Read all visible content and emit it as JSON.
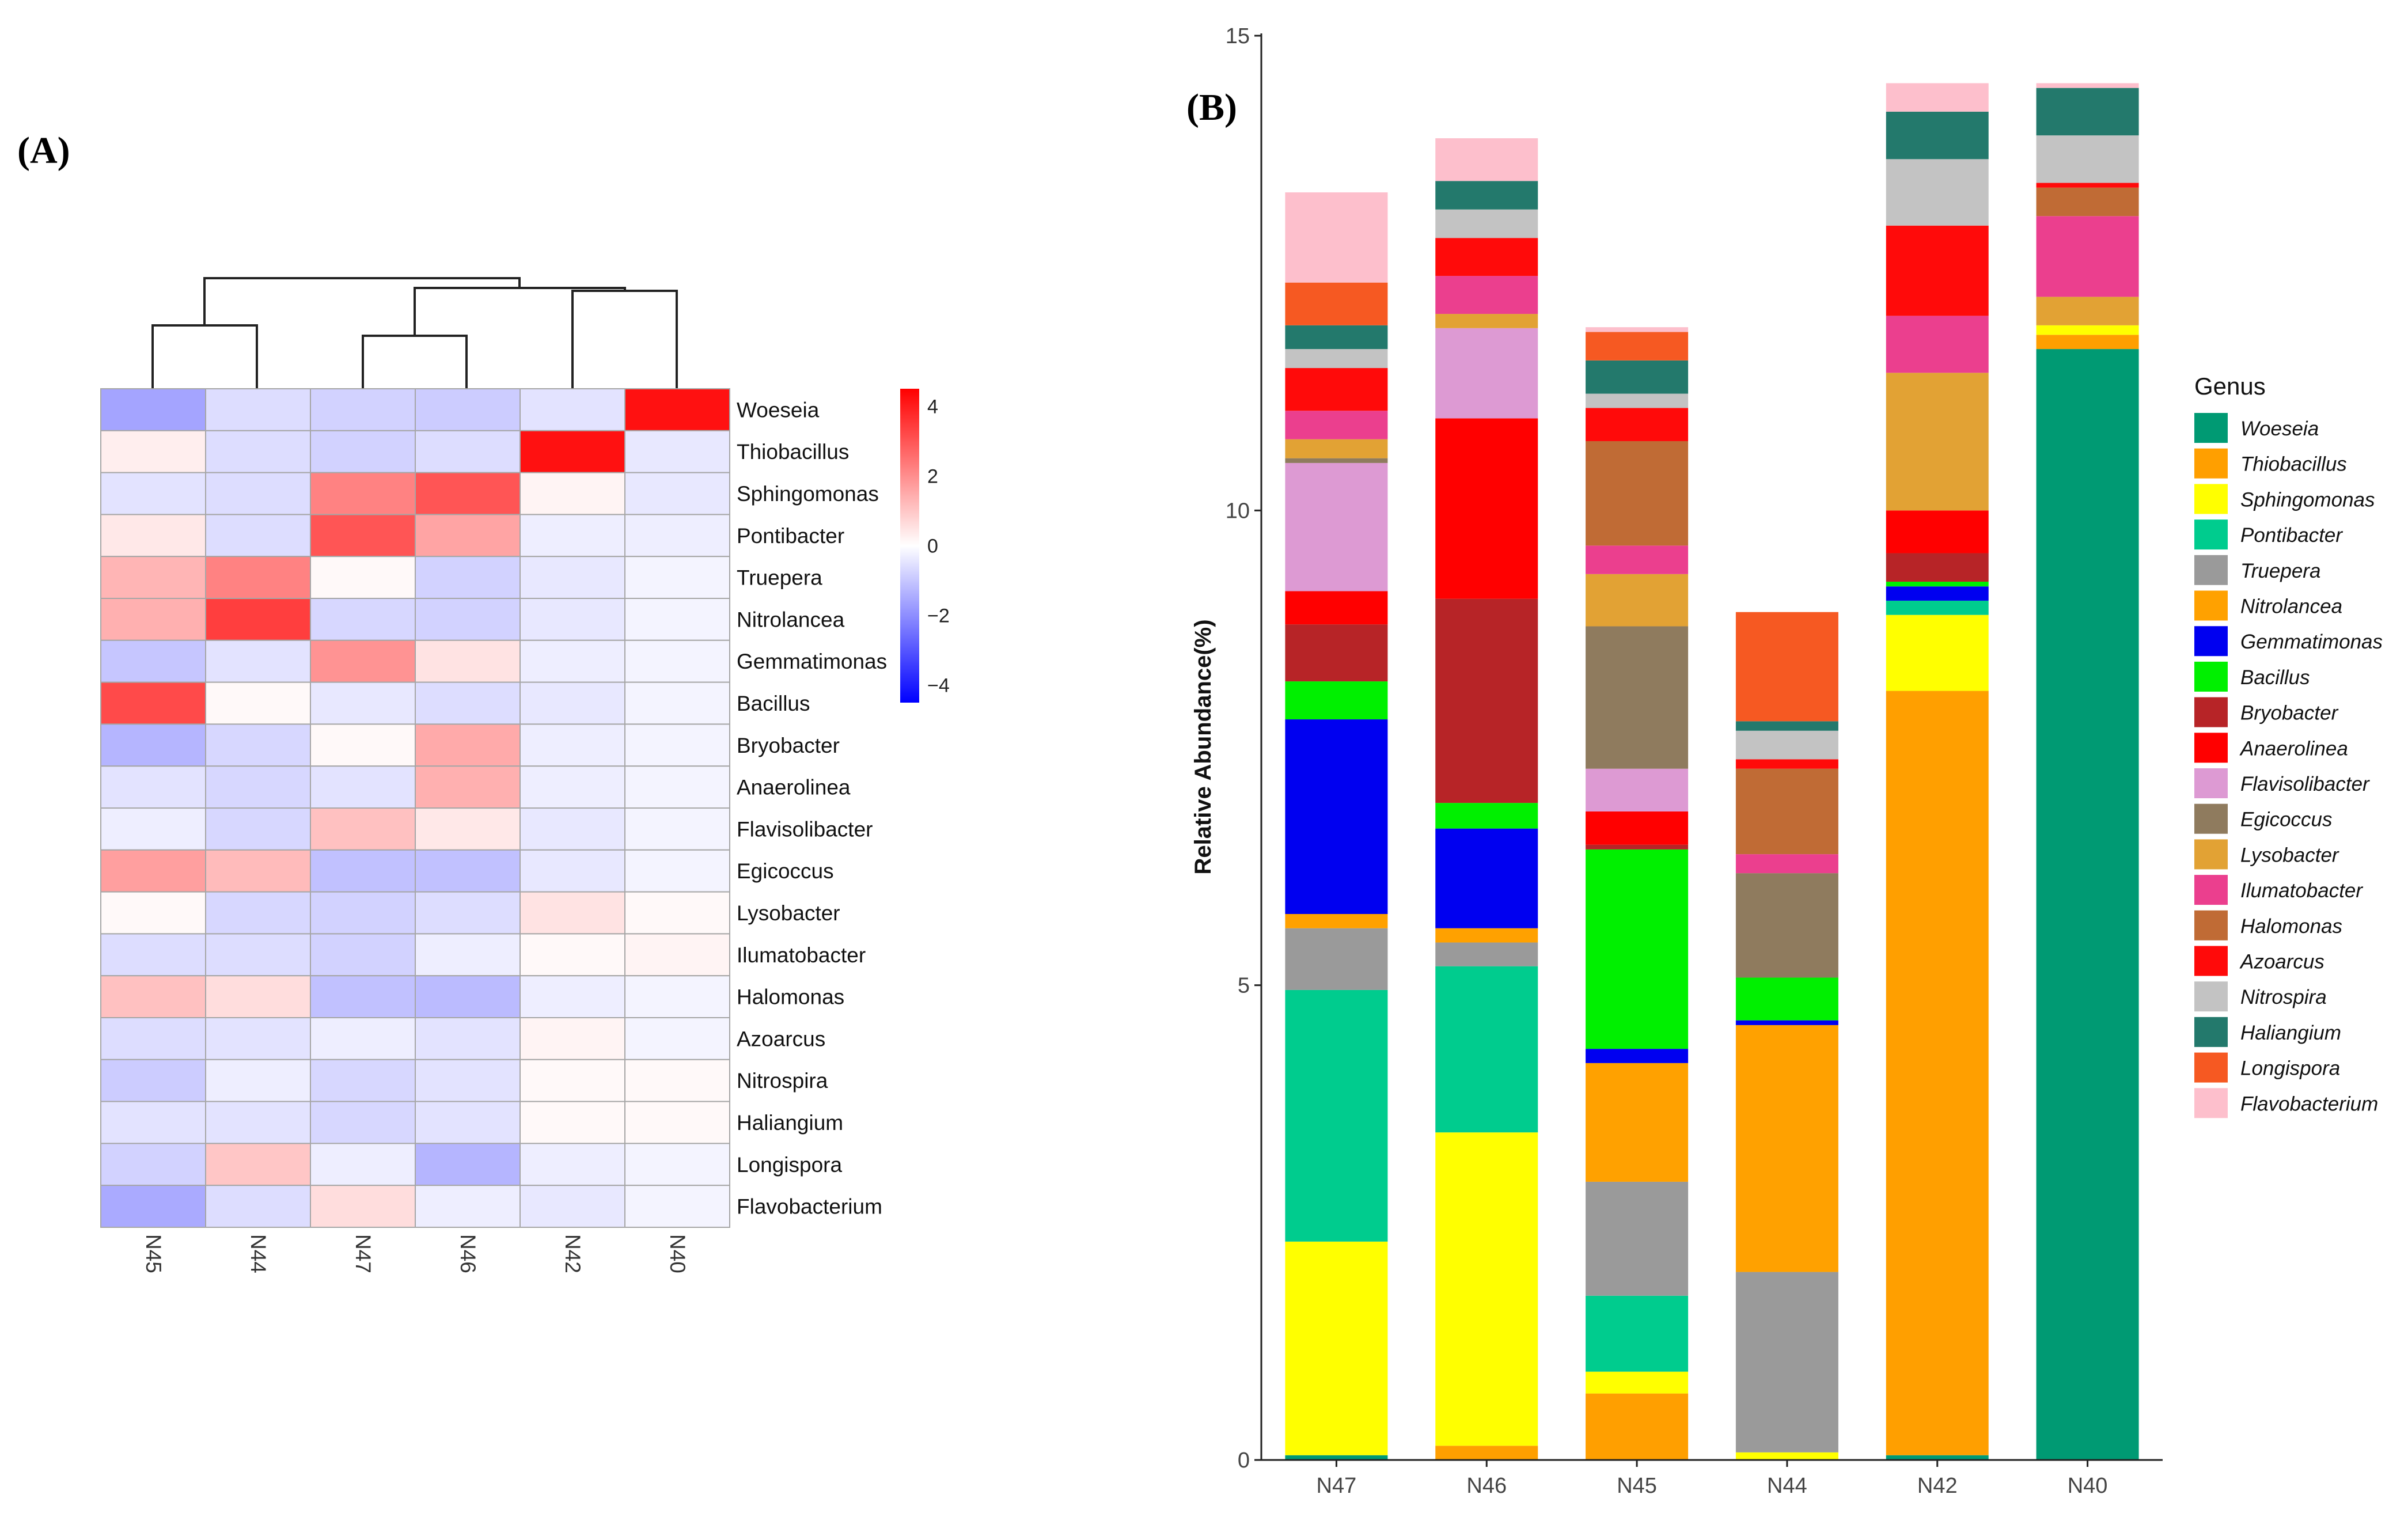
{
  "panels": {
    "a_label": "(A)",
    "b_label": "(B)"
  },
  "colors": {
    "Woeseia": "#009a73",
    "Thiobacillus": "#ff9f00",
    "Sphingomonas": "#ffff00",
    "Pontibacter": "#00cc8e",
    "Truepera": "#9a9a9a",
    "Nitrolancea": "#ffa100",
    "Gemmatimonas": "#0000f0",
    "Bacillus": "#00f000",
    "Bryobacter": "#b72427",
    "Anaerolinea": "#ff0000",
    "Flavisolibacter": "#dd9ad3",
    "Egicoccus": "#8f7b5e",
    "Lysobacter": "#e2a234",
    "Ilumatobacter": "#eb3f8e",
    "Halomonas": "#c06b35",
    "Azoarcus": "#ff0a0a",
    "Nitrospira": "#c3c3c3",
    "Haliangium": "#23796c",
    "Longispora": "#f65922",
    "Flavobacterium": "#fdbfcc"
  },
  "heatmap": {
    "rows": [
      "Woeseia",
      "Thiobacillus",
      "Sphingomonas",
      "Pontibacter",
      "Truepera",
      "Nitrolancea",
      "Gemmatimonas",
      "Bacillus",
      "Bryobacter",
      "Anaerolinea",
      "Flavisolibacter",
      "Egicoccus",
      "Lysobacter",
      "Ilumatobacter",
      "Halomonas",
      "Azoarcus",
      "Nitrospira",
      "Haliangium",
      "Longispora",
      "Flavobacterium"
    ],
    "columns": [
      "N45",
      "N44",
      "N47",
      "N46",
      "N42",
      "N40"
    ],
    "values": [
      [
        -1.6,
        -0.6,
        -0.8,
        -0.9,
        -0.5,
        4.2
      ],
      [
        0.3,
        -0.6,
        -0.8,
        -0.6,
        4.2,
        -0.4
      ],
      [
        -0.5,
        -0.6,
        2.2,
        3.0,
        0.2,
        -0.4
      ],
      [
        0.4,
        -0.6,
        3.0,
        1.6,
        -0.3,
        -0.3
      ],
      [
        1.3,
        2.2,
        0.1,
        -0.8,
        -0.4,
        -0.2
      ],
      [
        1.4,
        3.4,
        -0.7,
        -0.8,
        -0.4,
        -0.2
      ],
      [
        -1.0,
        -0.5,
        1.9,
        0.5,
        -0.3,
        -0.2
      ],
      [
        3.2,
        0.1,
        -0.4,
        -0.6,
        -0.4,
        -0.2
      ],
      [
        -1.3,
        -0.7,
        0.1,
        1.5,
        -0.3,
        -0.2
      ],
      [
        -0.5,
        -0.7,
        -0.5,
        1.4,
        -0.3,
        -0.2
      ],
      [
        -0.3,
        -0.7,
        1.1,
        0.4,
        -0.4,
        -0.2
      ],
      [
        1.7,
        1.2,
        -1.1,
        -1.1,
        -0.4,
        -0.2
      ],
      [
        0.1,
        -0.7,
        -0.8,
        -0.6,
        0.5,
        0.1
      ],
      [
        -0.6,
        -0.6,
        -0.8,
        -0.3,
        0.1,
        0.2
      ],
      [
        1.1,
        0.6,
        -1.1,
        -1.2,
        -0.3,
        -0.2
      ],
      [
        -0.6,
        -0.5,
        -0.3,
        -0.5,
        0.2,
        -0.2
      ],
      [
        -0.9,
        -0.3,
        -0.7,
        -0.5,
        0.1,
        0.1
      ],
      [
        -0.5,
        -0.5,
        -0.7,
        -0.5,
        0.1,
        0.1
      ],
      [
        -0.8,
        1.0,
        -0.3,
        -1.3,
        -0.3,
        -0.2
      ],
      [
        -1.5,
        -0.6,
        0.6,
        -0.3,
        -0.4,
        -0.2
      ]
    ],
    "colorbar": {
      "min": -4.5,
      "max": 4.5,
      "ticks": [
        4,
        2,
        0,
        -2,
        -4
      ],
      "tick_labels": [
        "4",
        "2",
        "0",
        "−2",
        "−4"
      ]
    }
  },
  "chart_data": [
    {
      "type": "heatmap",
      "title": "",
      "rows": [
        "Woeseia",
        "Thiobacillus",
        "Sphingomonas",
        "Pontibacter",
        "Truepera",
        "Nitrolancea",
        "Gemmatimonas",
        "Bacillus",
        "Bryobacter",
        "Anaerolinea",
        "Flavisolibacter",
        "Egicoccus",
        "Lysobacter",
        "Ilumatobacter",
        "Halomonas",
        "Azoarcus",
        "Nitrospira",
        "Haliangium",
        "Longispora",
        "Flavobacterium"
      ],
      "columns": [
        "N45",
        "N44",
        "N47",
        "N46",
        "N42",
        "N40"
      ],
      "color_range": [
        -4,
        4
      ]
    },
    {
      "type": "bar",
      "stacked": true,
      "categories": [
        "N47",
        "N46",
        "N45",
        "N44",
        "N42",
        "N40"
      ],
      "ylabel": "Relative Abundance(%)",
      "xlabel": "",
      "ylim": [
        0,
        15
      ],
      "yticks": [
        0,
        5,
        10,
        15
      ],
      "legend_title": "Genus",
      "legend_position": "right",
      "series": [
        {
          "name": "Woeseia",
          "values": [
            0.05,
            0.0,
            0.0,
            0.0,
            0.05,
            11.7
          ]
        },
        {
          "name": "Thiobacillus",
          "values": [
            0.0,
            0.15,
            0.7,
            0.0,
            8.05,
            0.15
          ]
        },
        {
          "name": "Sphingomonas",
          "values": [
            2.25,
            3.3,
            0.23,
            0.08,
            0.8,
            0.1
          ]
        },
        {
          "name": "Pontibacter",
          "values": [
            2.65,
            1.75,
            0.8,
            0.0,
            0.15,
            0.0
          ]
        },
        {
          "name": "Truepera",
          "values": [
            0.65,
            0.25,
            1.2,
            1.9,
            0.0,
            0.0
          ]
        },
        {
          "name": "Nitrolancea",
          "values": [
            0.15,
            0.15,
            1.25,
            2.6,
            0.0,
            0.0
          ]
        },
        {
          "name": "Gemmatimonas",
          "values": [
            2.05,
            1.05,
            0.15,
            0.05,
            0.15,
            0.0
          ]
        },
        {
          "name": "Bacillus",
          "values": [
            0.4,
            0.27,
            2.1,
            0.45,
            0.05,
            0.0
          ]
        },
        {
          "name": "Bryobacter",
          "values": [
            0.6,
            2.15,
            0.05,
            0.0,
            0.3,
            0.0
          ]
        },
        {
          "name": "Anaerolinea",
          "values": [
            0.35,
            1.9,
            0.35,
            0.0,
            0.45,
            0.0
          ]
        },
        {
          "name": "Flavisolibacter",
          "values": [
            1.35,
            0.95,
            0.45,
            0.0,
            0.0,
            0.0
          ]
        },
        {
          "name": "Egicoccus",
          "values": [
            0.05,
            0.0,
            1.5,
            1.1,
            0.0,
            0.0
          ]
        },
        {
          "name": "Lysobacter",
          "values": [
            0.2,
            0.15,
            0.55,
            0.0,
            1.45,
            0.3
          ]
        },
        {
          "name": "Ilumatobacter",
          "values": [
            0.3,
            0.4,
            0.3,
            0.2,
            0.6,
            0.85
          ]
        },
        {
          "name": "Halomonas",
          "values": [
            0.0,
            0.0,
            1.1,
            0.9,
            0.0,
            0.3
          ]
        },
        {
          "name": "Azoarcus",
          "values": [
            0.45,
            0.4,
            0.35,
            0.1,
            0.95,
            0.05
          ]
        },
        {
          "name": "Nitrospira",
          "values": [
            0.2,
            0.3,
            0.15,
            0.3,
            0.7,
            0.5
          ]
        },
        {
          "name": "Haliangium",
          "values": [
            0.25,
            0.3,
            0.35,
            0.1,
            0.5,
            0.5
          ]
        },
        {
          "name": "Longispora",
          "values": [
            0.45,
            0.0,
            0.3,
            1.15,
            0.0,
            0.0
          ]
        },
        {
          "name": "Flavobacterium",
          "values": [
            0.95,
            0.45,
            0.05,
            0.0,
            0.3,
            0.05
          ]
        }
      ]
    }
  ]
}
